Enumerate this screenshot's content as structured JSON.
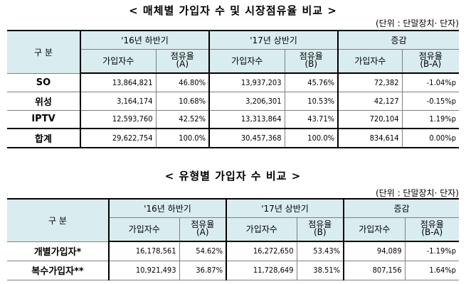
{
  "table1": {
    "title": "< 매체별 가입자 수 및 시장점유율 비교 >",
    "unit": "(단위 : 단말장치· 단자)",
    "header": {
      "category": "구  분",
      "period1": "'16년 하반기",
      "period2": "'17년 상반기",
      "change": "증감",
      "subscribers": "가입자수",
      "share_label": "점유율",
      "share_a": "(A)",
      "share_b": "(B)",
      "share_ba": "(B-A)"
    },
    "rows": [
      {
        "name": "SO",
        "sub16": "13,864,821",
        "share16": "46.80%",
        "sub17": "13,937,203",
        "share17": "45.76%",
        "diff": "72,382",
        "sharediff": "-1.04%p"
      },
      {
        "name": "위성",
        "sub16": "3,164,174",
        "share16": "10.68%",
        "sub17": "3,206,301",
        "share17": "10.53%",
        "diff": "42,127",
        "sharediff": "-0.15%p"
      },
      {
        "name": "IPTV",
        "sub16": "12,593,760",
        "share16": "42.52%",
        "sub17": "13,313,864",
        "share17": "43.71%",
        "diff": "720,104",
        "sharediff": "1.19%p"
      },
      {
        "name": "합계",
        "sub16": "29,622,754",
        "share16": "100.0%",
        "sub17": "30,457,368",
        "share17": "100.0%",
        "diff": "834,614",
        "sharediff": "0.00%p"
      }
    ]
  },
  "table2": {
    "title": "< 유형별 가입자 수 비교 >",
    "unit": "(단위 : 단말장치· 단자)",
    "header": {
      "category": "구  분",
      "period1": "'16년 하반기",
      "period2": "'17년 상반기",
      "change": "증감",
      "subscribers": "가입자수",
      "share_label": "점유율",
      "share_a": "(A)",
      "share_b": "(B)",
      "share_ba": "(B-A)"
    },
    "rows": [
      {
        "name": "개별가입자*",
        "sub16": "16,178,561",
        "share16": "54.62%",
        "sub17": "16,272,650",
        "share17": "53.43%",
        "diff": "94,089",
        "sharediff": "-1.19%p"
      },
      {
        "name": "복수가입자**",
        "sub16": "10,921,493",
        "share16": "36.87%",
        "sub17": "11,728,649",
        "share17": "38.51%",
        "diff": "807,156",
        "sharediff": "1.64%p"
      }
    ]
  }
}
